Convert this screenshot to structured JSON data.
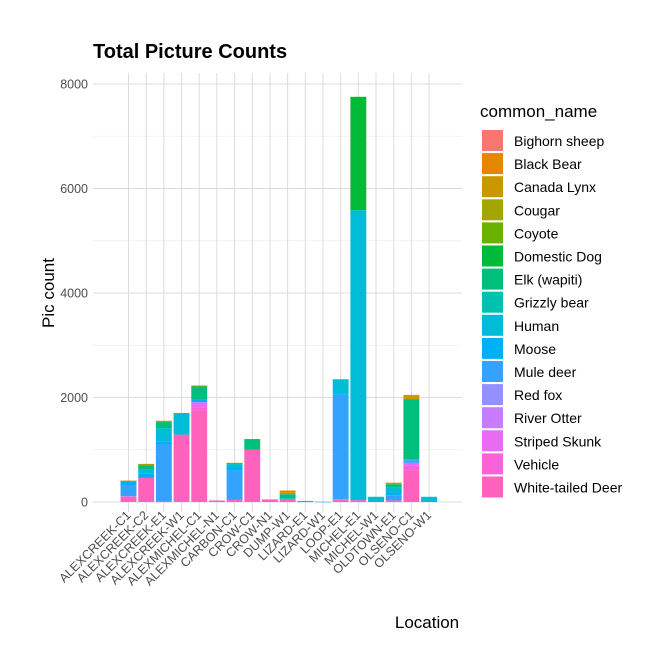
{
  "chart_data": {
    "type": "bar",
    "stacked": true,
    "title": "Total Picture Counts",
    "xlabel": "Location",
    "ylabel": "Pic count",
    "ylim": [
      0,
      8000
    ],
    "yticks": [
      0,
      2000,
      4000,
      6000,
      8000
    ],
    "grid": true,
    "legend_placement": "right",
    "legend_title": "common_name",
    "categories": [
      "ALEXCREEK-C1",
      "ALEXCREEK-C2",
      "ALEXCREEK-E1",
      "ALEXCREEK-W1",
      "ALEXMICHEL-C1",
      "ALEXMICHEL-N1",
      "CARBON-C1",
      "CROW-C1",
      "CROW-N1",
      "DUMP-W1",
      "LIZARD-E1",
      "LIZARD-W1",
      "LOOP-E1",
      "MICHEL-E1",
      "MICHEL-W1",
      "OLDTOWN-E1",
      "OLSENO-C1",
      "OLSENO-W1"
    ],
    "series": [
      {
        "name": "Bighorn sheep",
        "color": "#F8766D",
        "values": [
          0,
          0,
          0,
          0,
          0,
          0,
          0,
          0,
          0,
          0,
          0,
          0,
          0,
          0,
          0,
          0,
          0,
          0
        ]
      },
      {
        "name": "Black Bear",
        "color": "#E58700",
        "values": [
          5,
          10,
          15,
          5,
          10,
          0,
          5,
          0,
          0,
          40,
          0,
          0,
          5,
          0,
          0,
          10,
          20,
          0
        ]
      },
      {
        "name": "Canada Lynx",
        "color": "#C99800",
        "values": [
          0,
          0,
          0,
          0,
          0,
          0,
          0,
          0,
          0,
          30,
          0,
          0,
          0,
          0,
          0,
          0,
          60,
          0
        ]
      },
      {
        "name": "Cougar",
        "color": "#A3A500",
        "values": [
          0,
          0,
          0,
          0,
          0,
          0,
          0,
          0,
          0,
          0,
          0,
          0,
          0,
          0,
          0,
          0,
          0,
          0
        ]
      },
      {
        "name": "Coyote",
        "color": "#6BB100",
        "values": [
          0,
          20,
          10,
          0,
          10,
          0,
          5,
          5,
          0,
          0,
          0,
          0,
          0,
          0,
          0,
          20,
          0,
          0
        ]
      },
      {
        "name": "Domestic Dog",
        "color": "#00BA38",
        "values": [
          0,
          0,
          0,
          0,
          0,
          0,
          0,
          0,
          0,
          0,
          0,
          0,
          0,
          2170,
          0,
          0,
          0,
          0
        ]
      },
      {
        "name": "Elk (wapiti)",
        "color": "#00BF7D",
        "values": [
          10,
          70,
          120,
          0,
          250,
          0,
          20,
          200,
          0,
          80,
          0,
          0,
          0,
          0,
          0,
          60,
          1150,
          0
        ]
      },
      {
        "name": "Grizzly bear",
        "color": "#00C0AF",
        "values": [
          0,
          0,
          0,
          0,
          0,
          0,
          0,
          0,
          0,
          0,
          0,
          0,
          0,
          0,
          0,
          0,
          0,
          0
        ]
      },
      {
        "name": "Human",
        "color": "#00BCD8",
        "values": [
          5,
          80,
          250,
          410,
          0,
          0,
          40,
          0,
          0,
          20,
          10,
          0,
          270,
          5550,
          100,
          90,
          20,
          100
        ]
      },
      {
        "name": "Moose",
        "color": "#00B0F6",
        "values": [
          80,
          90,
          50,
          0,
          50,
          0,
          80,
          0,
          0,
          0,
          0,
          0,
          20,
          0,
          0,
          60,
          0,
          0
        ]
      },
      {
        "name": "Mule deer",
        "color": "#35A2FF",
        "values": [
          200,
          0,
          1100,
          0,
          0,
          0,
          560,
          0,
          0,
          0,
          10,
          5,
          2000,
          0,
          0,
          100,
          50,
          0
        ]
      },
      {
        "name": "Red fox",
        "color": "#9590FF",
        "values": [
          0,
          0,
          0,
          0,
          0,
          0,
          0,
          0,
          0,
          0,
          0,
          0,
          0,
          0,
          0,
          0,
          0,
          0
        ]
      },
      {
        "name": "River Otter",
        "color": "#C77CFF",
        "values": [
          0,
          0,
          0,
          0,
          0,
          0,
          0,
          0,
          0,
          0,
          0,
          0,
          0,
          0,
          0,
          0,
          0,
          0
        ]
      },
      {
        "name": "Striped Skunk",
        "color": "#E76BF3",
        "values": [
          0,
          0,
          0,
          0,
          100,
          0,
          0,
          0,
          0,
          0,
          0,
          0,
          0,
          0,
          0,
          0,
          60,
          0
        ]
      },
      {
        "name": "Vehicle",
        "color": "#FA62DB",
        "values": [
          10,
          0,
          10,
          0,
          60,
          0,
          10,
          0,
          0,
          0,
          0,
          0,
          10,
          5,
          0,
          0,
          80,
          0
        ]
      },
      {
        "name": "White-tailed Deer",
        "color": "#FF62BC",
        "values": [
          100,
          460,
          0,
          1290,
          1750,
          30,
          30,
          1000,
          50,
          50,
          0,
          0,
          45,
          30,
          0,
          30,
          610,
          0
        ]
      }
    ]
  }
}
